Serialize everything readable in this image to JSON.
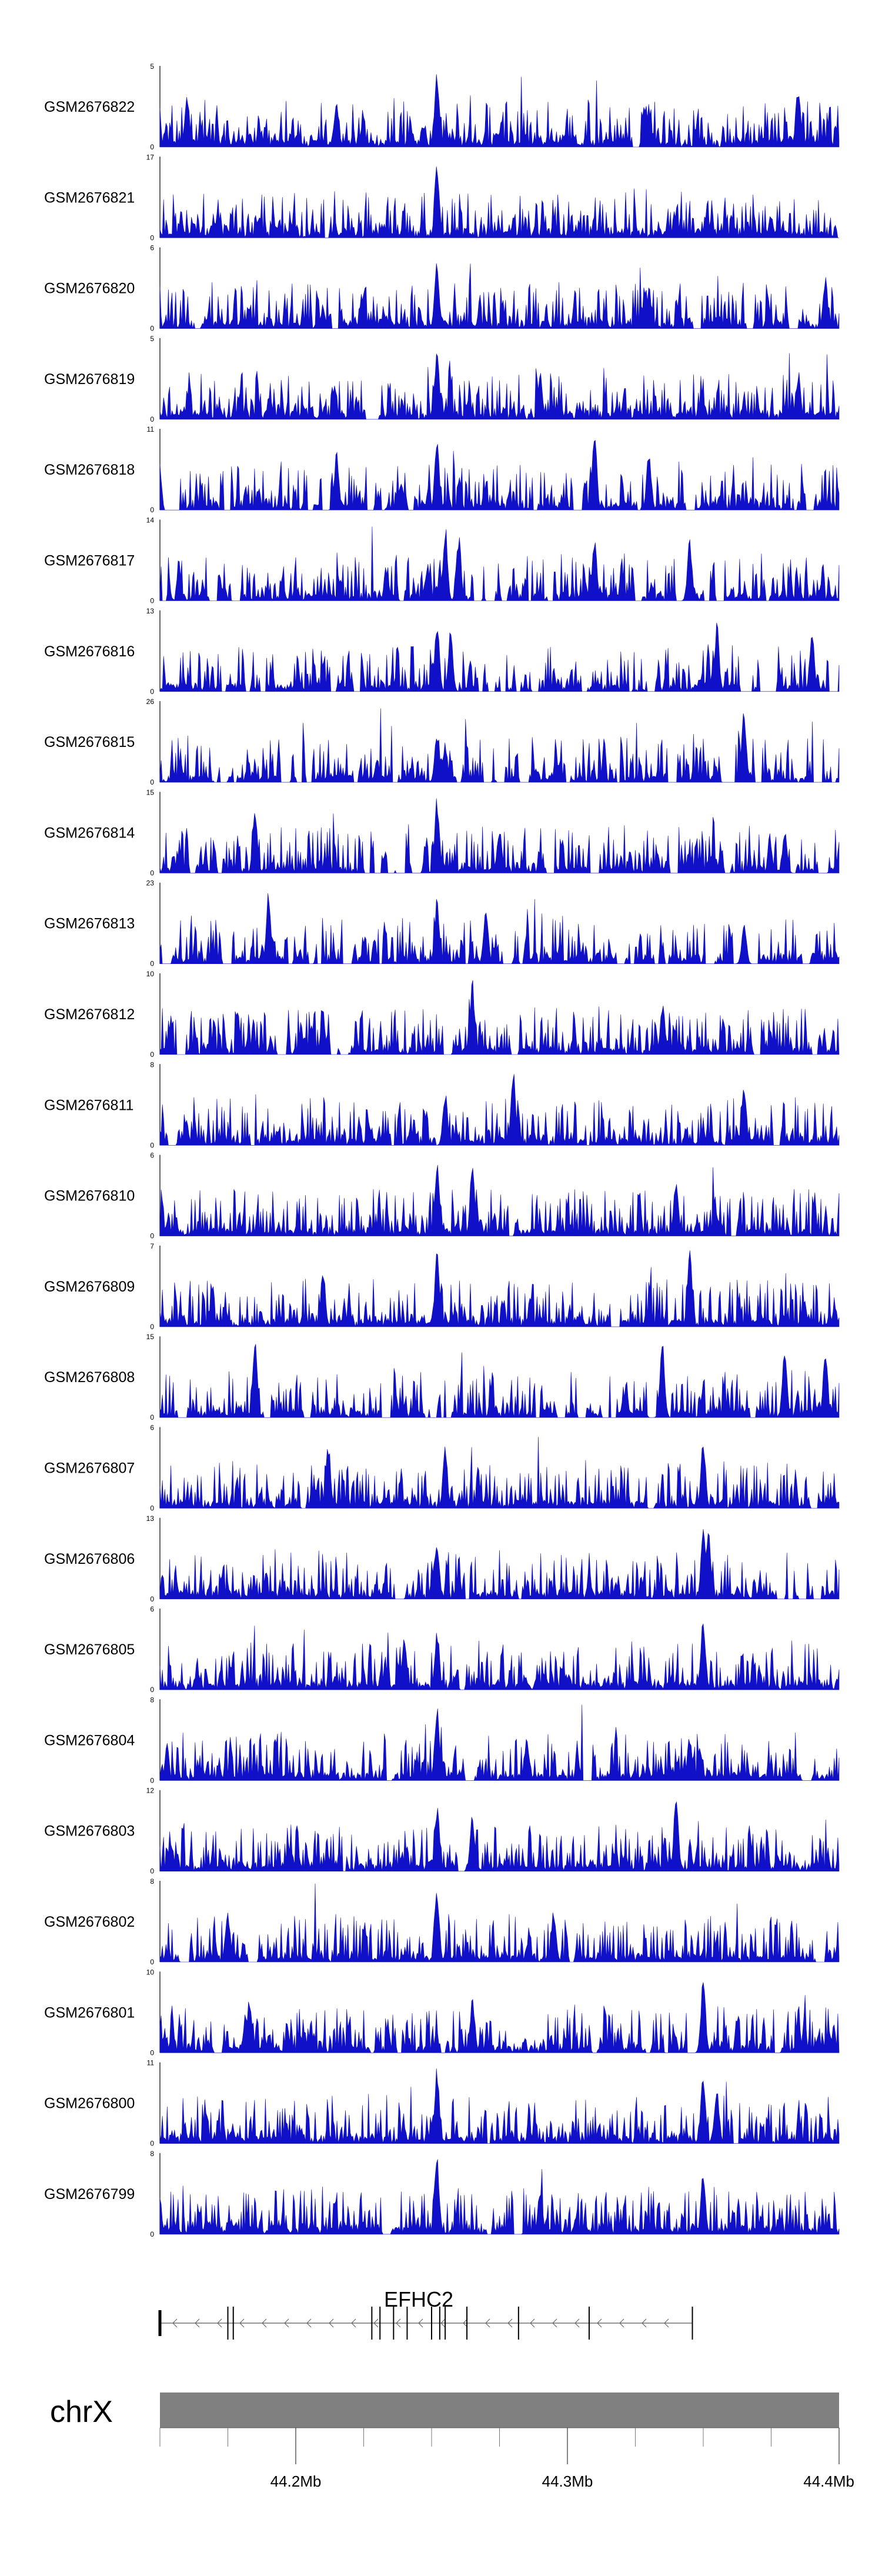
{
  "chart_data": {
    "type": "area",
    "chromosome": "chrX",
    "x_range_mb": [
      44.15,
      44.4
    ],
    "gene": {
      "name": "EFHC2",
      "start_mb": 44.15,
      "end_mb": 44.346,
      "strand": "-",
      "exons_mb": [
        44.15,
        44.175,
        44.177,
        44.228,
        44.231,
        44.236,
        44.241,
        44.25,
        44.253,
        44.255,
        44.263,
        44.282,
        44.308,
        44.346
      ]
    },
    "axis_ticks": [
      {
        "value": 44.2,
        "label": "44.2Mb"
      },
      {
        "value": 44.3,
        "label": "44.3Mb"
      },
      {
        "value": 44.4,
        "label": "44.4Mb"
      }
    ],
    "minor_ticks_mb": [
      44.15,
      44.175,
      44.225,
      44.25,
      44.275,
      44.325,
      44.35,
      44.375
    ],
    "color": "#1010c8",
    "tracks": [
      {
        "name": "GSM2676822",
        "max": 5,
        "sparsity": 0.05,
        "peaks": [
          [
            44.252,
            1.0
          ],
          [
            44.33,
            0.55
          ],
          [
            44.385,
            0.85
          ],
          [
            44.16,
            0.7
          ],
          [
            44.215,
            0.6
          ]
        ]
      },
      {
        "name": "GSM2676821",
        "max": 17,
        "sparsity": 0.1,
        "peaks": [
          [
            44.252,
            1.0
          ],
          [
            44.375,
            0.3
          ],
          [
            44.17,
            0.25
          ]
        ]
      },
      {
        "name": "GSM2676820",
        "max": 6,
        "sparsity": 0.05,
        "peaks": [
          [
            44.252,
            0.9
          ],
          [
            44.33,
            0.55
          ],
          [
            44.395,
            0.7
          ]
        ]
      },
      {
        "name": "GSM2676819",
        "max": 5,
        "sparsity": 0.05,
        "peaks": [
          [
            44.252,
            1.0
          ],
          [
            44.29,
            0.6
          ],
          [
            44.385,
            0.6
          ]
        ]
      },
      {
        "name": "GSM2676818",
        "max": 11,
        "sparsity": 0.45,
        "peaks": [
          [
            44.252,
            0.95
          ],
          [
            44.31,
            1.0
          ],
          [
            44.215,
            0.75
          ],
          [
            44.33,
            0.8
          ]
        ]
      },
      {
        "name": "GSM2676817",
        "max": 14,
        "sparsity": 0.5,
        "peaks": [
          [
            44.255,
            1.0
          ],
          [
            44.26,
            0.9
          ],
          [
            44.31,
            0.85
          ],
          [
            44.345,
            0.8
          ]
        ]
      },
      {
        "name": "GSM2676816",
        "max": 13,
        "sparsity": 0.6,
        "peaks": [
          [
            44.252,
            1.0
          ],
          [
            44.257,
            0.85
          ],
          [
            44.355,
            0.9
          ],
          [
            44.39,
            0.8
          ]
        ]
      },
      {
        "name": "GSM2676815",
        "max": 26,
        "sparsity": 0.65,
        "peaks": [
          [
            44.252,
            0.7
          ],
          [
            44.255,
            0.55
          ],
          [
            44.365,
            1.0
          ],
          [
            44.23,
            0.3
          ]
        ]
      },
      {
        "name": "GSM2676814",
        "max": 15,
        "sparsity": 0.6,
        "peaks": [
          [
            44.252,
            1.0
          ],
          [
            44.185,
            0.8
          ],
          [
            44.275,
            0.6
          ],
          [
            44.38,
            0.55
          ]
        ]
      },
      {
        "name": "GSM2676813",
        "max": 23,
        "sparsity": 0.6,
        "peaks": [
          [
            44.19,
            1.0
          ],
          [
            44.252,
            0.9
          ],
          [
            44.27,
            0.75
          ],
          [
            44.365,
            0.55
          ]
        ]
      },
      {
        "name": "GSM2676812",
        "max": 10,
        "sparsity": 0.15,
        "peaks": [
          [
            44.265,
            1.0
          ],
          [
            44.335,
            0.7
          ],
          [
            44.21,
            0.6
          ]
        ]
      },
      {
        "name": "GSM2676811",
        "max": 8,
        "sparsity": 0.1,
        "peaks": [
          [
            44.28,
            1.0
          ],
          [
            44.365,
            0.85
          ],
          [
            44.255,
            0.7
          ]
        ]
      },
      {
        "name": "GSM2676810",
        "max": 6,
        "sparsity": 0.08,
        "peaks": [
          [
            44.252,
            1.0
          ],
          [
            44.265,
            0.95
          ],
          [
            44.34,
            0.8
          ]
        ]
      },
      {
        "name": "GSM2676809",
        "max": 7,
        "sparsity": 0.08,
        "peaks": [
          [
            44.252,
            1.0
          ],
          [
            44.345,
            1.0
          ],
          [
            44.21,
            0.8
          ]
        ]
      },
      {
        "name": "GSM2676808",
        "max": 15,
        "sparsity": 0.45,
        "peaks": [
          [
            44.185,
            1.0
          ],
          [
            44.335,
            1.0
          ],
          [
            44.38,
            1.0
          ],
          [
            44.395,
            0.9
          ]
        ]
      },
      {
        "name": "GSM2676807",
        "max": 6,
        "sparsity": 0.05,
        "peaks": [
          [
            44.212,
            0.9
          ],
          [
            44.255,
            0.8
          ],
          [
            44.35,
            0.9
          ]
        ]
      },
      {
        "name": "GSM2676806",
        "max": 13,
        "sparsity": 0.15,
        "peaks": [
          [
            44.35,
            1.0
          ],
          [
            44.352,
            0.9
          ],
          [
            44.252,
            0.75
          ]
        ]
      },
      {
        "name": "GSM2676805",
        "max": 6,
        "sparsity": 0.05,
        "peaks": [
          [
            44.35,
            1.0
          ],
          [
            44.252,
            0.8
          ],
          [
            44.24,
            0.75
          ]
        ]
      },
      {
        "name": "GSM2676804",
        "max": 8,
        "sparsity": 0.1,
        "peaks": [
          [
            44.252,
            1.0
          ],
          [
            44.285,
            0.6
          ],
          [
            44.345,
            0.6
          ]
        ]
      },
      {
        "name": "GSM2676803",
        "max": 12,
        "sparsity": 0.1,
        "peaks": [
          [
            44.34,
            1.0
          ],
          [
            44.252,
            0.9
          ],
          [
            44.265,
            0.75
          ]
        ]
      },
      {
        "name": "GSM2676802",
        "max": 8,
        "sparsity": 0.1,
        "peaks": [
          [
            44.252,
            1.0
          ],
          [
            44.295,
            0.7
          ],
          [
            44.175,
            0.65
          ]
        ]
      },
      {
        "name": "GSM2676801",
        "max": 10,
        "sparsity": 0.2,
        "peaks": [
          [
            44.35,
            1.0
          ],
          [
            44.183,
            0.75
          ],
          [
            44.265,
            0.7
          ]
        ]
      },
      {
        "name": "GSM2676800",
        "max": 11,
        "sparsity": 0.15,
        "peaks": [
          [
            44.252,
            1.0
          ],
          [
            44.35,
            0.95
          ],
          [
            44.355,
            0.8
          ]
        ]
      },
      {
        "name": "GSM2676799",
        "max": 8,
        "sparsity": 0.1,
        "peaks": [
          [
            44.252,
            1.0
          ],
          [
            44.35,
            0.85
          ],
          [
            44.29,
            0.6
          ]
        ]
      }
    ]
  }
}
